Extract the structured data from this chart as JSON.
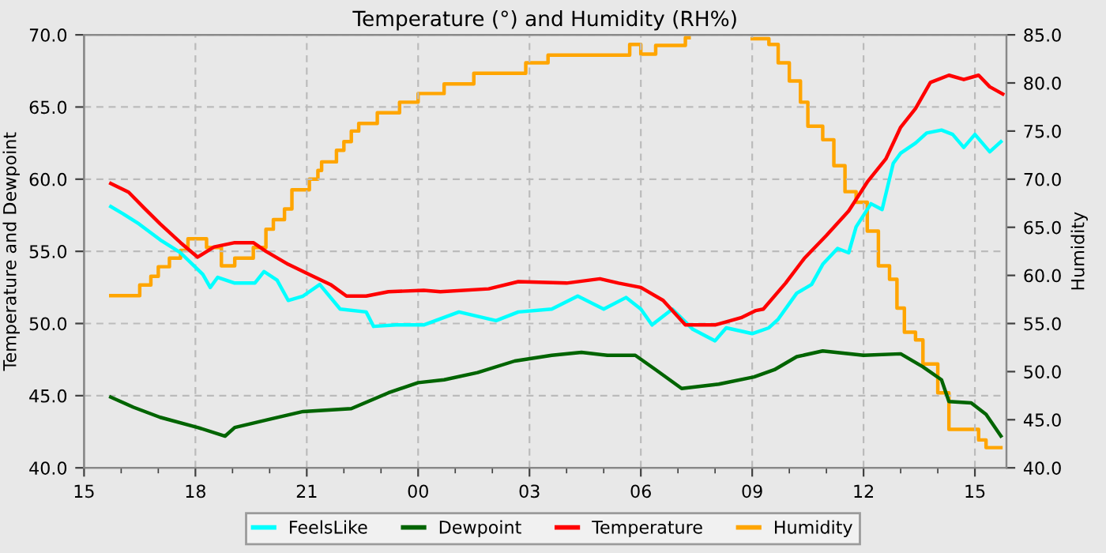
{
  "chart_data": {
    "type": "line",
    "title": "Temperature (°) and Humidity (RH%)",
    "ylabel": "Temperature and Dewpoint",
    "y2label": "Humidity",
    "xlim": [
      15,
      39.85
    ],
    "xticks": [
      {
        "value": 15,
        "label": "15"
      },
      {
        "value": 16,
        "label": null
      },
      {
        "value": 17,
        "label": null
      },
      {
        "value": 18,
        "label": "18"
      },
      {
        "value": 19,
        "label": null
      },
      {
        "value": 20,
        "label": null
      },
      {
        "value": 21,
        "label": "21"
      },
      {
        "value": 22,
        "label": null
      },
      {
        "value": 23,
        "label": null
      },
      {
        "value": 24,
        "label": "00"
      },
      {
        "value": 25,
        "label": null
      },
      {
        "value": 26,
        "label": null
      },
      {
        "value": 27,
        "label": "03"
      },
      {
        "value": 28,
        "label": null
      },
      {
        "value": 29,
        "label": null
      },
      {
        "value": 30,
        "label": "06"
      },
      {
        "value": 31,
        "label": null
      },
      {
        "value": 32,
        "label": null
      },
      {
        "value": 33,
        "label": "09"
      },
      {
        "value": 34,
        "label": null
      },
      {
        "value": 35,
        "label": null
      },
      {
        "value": 36,
        "label": "12"
      },
      {
        "value": 37,
        "label": null
      },
      {
        "value": 38,
        "label": null
      },
      {
        "value": 39,
        "label": "15"
      }
    ],
    "ylim": [
      40,
      70
    ],
    "yticks": [
      {
        "value": 40,
        "label": "40.0"
      },
      {
        "value": 45,
        "label": "45.0"
      },
      {
        "value": 50,
        "label": "50.0"
      },
      {
        "value": 55,
        "label": "55.0"
      },
      {
        "value": 60,
        "label": "60.0"
      },
      {
        "value": 65,
        "label": "65.0"
      },
      {
        "value": 70,
        "label": "70.0"
      }
    ],
    "y2lim": [
      40,
      85
    ],
    "y2ticks": [
      {
        "value": 40,
        "label": "40.0"
      },
      {
        "value": 45,
        "label": "45.0"
      },
      {
        "value": 50,
        "label": "50.0"
      },
      {
        "value": 55,
        "label": "55.0"
      },
      {
        "value": 60,
        "label": "60.0"
      },
      {
        "value": 65,
        "label": "65.0"
      },
      {
        "value": 70,
        "label": "70.0"
      },
      {
        "value": 75,
        "label": "75.0"
      },
      {
        "value": 80,
        "label": "80.0"
      },
      {
        "value": 85,
        "label": "85.0"
      }
    ],
    "grid": true,
    "legend": "bottom",
    "line_style": "solid",
    "marker": "none",
    "series": [
      {
        "name": "FeelsLike",
        "color": "#00ffff",
        "x": [
          15.72,
          16.05,
          16.48,
          17.05,
          17.6,
          18.2,
          18.4,
          18.6,
          19.06,
          19.6,
          19.85,
          20.2,
          20.5,
          20.9,
          21.35,
          21.9,
          22.6,
          22.8,
          23.4,
          24.15,
          25.1,
          26.1,
          26.7,
          27.6,
          28.3,
          29.0,
          29.6,
          30.0,
          30.3,
          30.85,
          31.4,
          32.0,
          32.3,
          33.0,
          33.45,
          33.7,
          34.2,
          34.6,
          34.9,
          35.3,
          35.6,
          35.8,
          36.2,
          36.5,
          36.8,
          37.0,
          37.4,
          37.7,
          38.1,
          38.4,
          38.7,
          39.0,
          39.4,
          39.7
        ],
        "values": [
          58.1,
          57.6,
          56.9,
          55.8,
          54.9,
          53.4,
          52.5,
          53.2,
          52.8,
          52.8,
          53.6,
          53.0,
          51.6,
          51.9,
          52.7,
          51.0,
          50.8,
          49.8,
          49.9,
          49.9,
          50.8,
          50.2,
          50.8,
          51.0,
          51.9,
          51.0,
          51.8,
          51.0,
          49.9,
          51.0,
          49.6,
          48.8,
          49.7,
          49.3,
          49.7,
          50.3,
          52.1,
          52.7,
          54.1,
          55.2,
          54.9,
          56.7,
          58.3,
          57.9,
          61.1,
          61.8,
          62.5,
          63.2,
          63.4,
          63.1,
          62.2,
          63.1,
          61.9,
          62.6
        ]
      },
      {
        "name": "Dewpoint",
        "color": "#006400",
        "x": [
          15.72,
          16.33,
          17.05,
          18.06,
          18.8,
          19.06,
          20.05,
          20.9,
          22.2,
          23.2,
          24.0,
          24.7,
          25.6,
          26.6,
          27.6,
          28.4,
          29.1,
          29.85,
          30.4,
          31.1,
          32.1,
          33.05,
          33.6,
          34.2,
          34.9,
          36.0,
          37.0,
          37.6,
          38.1,
          38.3,
          38.9,
          39.3,
          39.7
        ],
        "values": [
          44.9,
          44.2,
          43.5,
          42.8,
          42.2,
          42.8,
          43.4,
          43.9,
          44.1,
          45.2,
          45.9,
          46.1,
          46.6,
          47.4,
          47.8,
          48.0,
          47.8,
          47.8,
          46.8,
          45.5,
          45.8,
          46.3,
          46.8,
          47.7,
          48.1,
          47.8,
          47.9,
          47.0,
          46.1,
          44.6,
          44.5,
          43.7,
          42.2
        ]
      },
      {
        "name": "Temperature",
        "color": "#ff0000",
        "x": [
          15.72,
          16.2,
          16.62,
          17.05,
          17.6,
          18.06,
          18.5,
          19.06,
          19.56,
          19.9,
          20.5,
          21.07,
          21.64,
          22.07,
          22.6,
          23.2,
          24.15,
          24.6,
          25.9,
          26.7,
          28.0,
          28.9,
          29.4,
          30.0,
          30.6,
          31.2,
          32.0,
          32.7,
          33.1,
          33.3,
          33.9,
          34.4,
          35.0,
          35.6,
          36.1,
          36.6,
          37.0,
          37.4,
          37.8,
          38.3,
          38.7,
          39.1,
          39.4,
          39.75
        ],
        "values": [
          59.7,
          59.1,
          58.0,
          56.9,
          55.6,
          54.6,
          55.3,
          55.6,
          55.6,
          55.0,
          54.1,
          53.4,
          52.7,
          51.9,
          51.9,
          52.2,
          52.3,
          52.2,
          52.4,
          52.9,
          52.8,
          53.1,
          52.8,
          52.5,
          51.6,
          49.9,
          49.9,
          50.4,
          50.9,
          51.0,
          52.8,
          54.5,
          56.1,
          57.8,
          59.8,
          61.4,
          63.6,
          64.9,
          66.7,
          67.2,
          66.9,
          67.2,
          66.4,
          65.9
        ]
      },
      {
        "name": "Humidity",
        "color": "#ffa500",
        "type": "step",
        "axis": "y2",
        "x": [
          15.72,
          16.4,
          16.5,
          16.8,
          17.0,
          17.3,
          17.6,
          17.8,
          18.2,
          18.3,
          18.7,
          19.06,
          19.56,
          19.9,
          20.1,
          20.4,
          20.6,
          21.07,
          21.3,
          21.4,
          21.8,
          22.0,
          22.2,
          22.4,
          22.9,
          23.5,
          24.0,
          24.7,
          25.5,
          26.9,
          27.5,
          29.7,
          30.0,
          30.4,
          31.2,
          31.3,
          33.0,
          33.45,
          33.7,
          34.0,
          34.3,
          34.5,
          34.9,
          35.2,
          35.5,
          35.8,
          36.1,
          36.4,
          36.7,
          36.9,
          37.1,
          37.4,
          37.6,
          38.0,
          38.3,
          38.8,
          39.1,
          39.3,
          39.7
        ],
        "values": [
          57.9,
          57.9,
          59.0,
          59.9,
          60.9,
          61.8,
          62.6,
          63.8,
          63.8,
          62.9,
          61.0,
          61.8,
          62.9,
          64.8,
          65.8,
          66.9,
          68.9,
          70.0,
          70.9,
          71.8,
          73.0,
          73.9,
          75.0,
          75.8,
          76.9,
          78.0,
          78.9,
          79.9,
          81.0,
          82.1,
          82.9,
          84.0,
          83.0,
          83.9,
          84.7,
          null,
          84.6,
          84.0,
          82.1,
          80.2,
          78.0,
          75.5,
          74.1,
          71.4,
          68.7,
          67.6,
          64.6,
          61.0,
          59.6,
          56.6,
          54.1,
          53.3,
          50.8,
          47.8,
          44.0,
          44.0,
          42.9,
          42.1,
          42.1
        ]
      }
    ]
  }
}
